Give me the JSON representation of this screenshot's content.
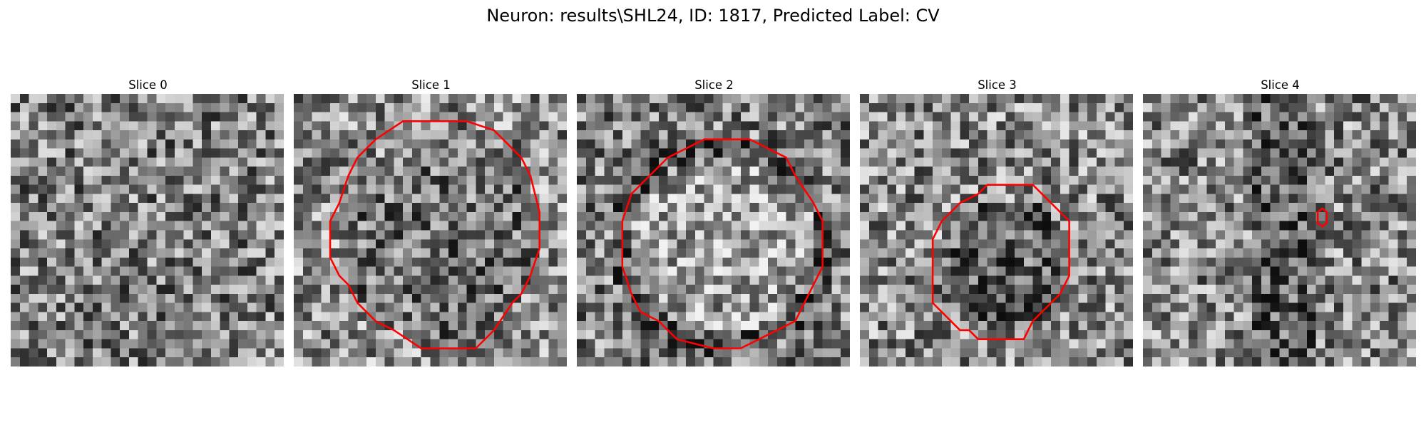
{
  "figure": {
    "title": "Neuron: results\\SHL24, ID: 1817, Predicted Label: CV"
  },
  "slices": [
    {
      "title": "Slice 0",
      "has_contour": false
    },
    {
      "title": "Slice 1",
      "has_contour": true
    },
    {
      "title": "Slice 2",
      "has_contour": true
    },
    {
      "title": "Slice 3",
      "has_contour": true
    },
    {
      "title": "Slice 4",
      "has_contour": true
    }
  ],
  "colors": {
    "contour": "#ff0000"
  }
}
